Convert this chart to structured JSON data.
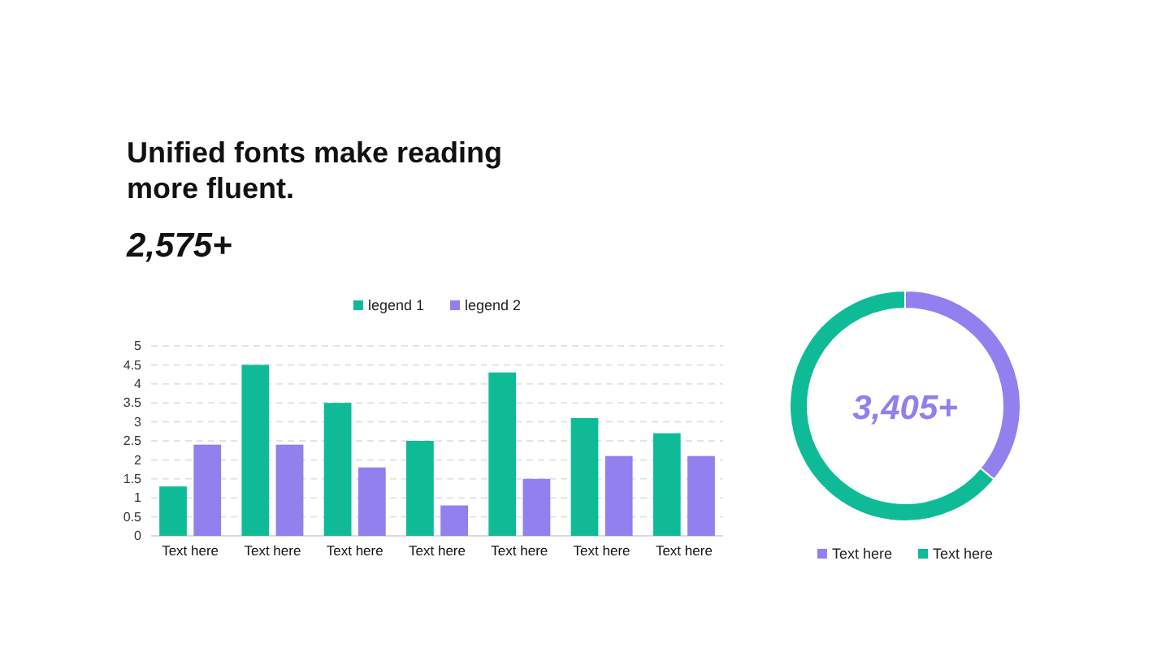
{
  "chart_data": [
    {
      "type": "bar",
      "title": "Unified fonts make reading more fluent.",
      "subtitle": "2,575+",
      "categories": [
        "Text here",
        "Text here",
        "Text here",
        "Text here",
        "Text here",
        "Text here",
        "Text here"
      ],
      "series": [
        {
          "name": "legend 1",
          "color": "#0fbb97",
          "values": [
            1.3,
            4.5,
            3.5,
            2.5,
            4.3,
            3.1,
            2.7
          ]
        },
        {
          "name": "legend 2",
          "color": "#9180ee",
          "values": [
            2.4,
            2.4,
            1.8,
            0.8,
            1.5,
            2.1,
            2.1
          ]
        }
      ],
      "ylim": [
        0,
        5
      ],
      "yticks": [
        0,
        0.5,
        1,
        1.5,
        2,
        2.5,
        3,
        3.5,
        4,
        4.5,
        5
      ],
      "grid": "y",
      "legend": "top"
    },
    {
      "type": "donut",
      "categories": [
        "Text here",
        "Text here"
      ],
      "values": [
        36,
        64
      ],
      "colors": [
        "#9180ee",
        "#0fbb97"
      ],
      "annotations": [
        "3,405+"
      ],
      "legend": "bottom"
    }
  ]
}
